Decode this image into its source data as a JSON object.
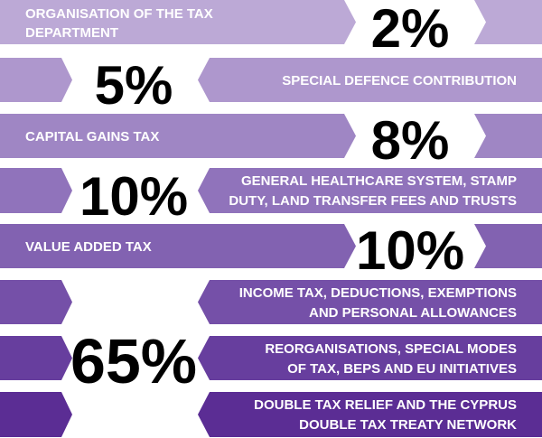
{
  "rows": [
    {
      "label_lines": [
        "ORGANISATION OF THE TAX",
        "DEPARTMENT"
      ],
      "percentage": "2%",
      "color": "#bca9d6",
      "percent_color": "#bca9d6"
    },
    {
      "label_lines": [
        "SPECIAL DEFENCE CONTRIBUTION"
      ],
      "percentage": "5%",
      "color": "#ae97cd",
      "percent_color": "#ae97cd"
    },
    {
      "label_lines": [
        "CAPITAL GAINS TAX"
      ],
      "percentage": "8%",
      "color": "#9f86c4",
      "percent_color": "#9f86c4"
    },
    {
      "label_lines": [
        "GENERAL HEALTHCARE SYSTEM, STAMP",
        "DUTY, LAND TRANSFER FEES AND TRUSTS"
      ],
      "percentage": "10%",
      "color": "#9073bb",
      "percent_color": "#9073bb"
    },
    {
      "label_lines": [
        "VALUE ADDED TAX"
      ],
      "percentage": "10%",
      "color": "#8262b1",
      "percent_color": "#8262b1"
    },
    {
      "label_lines": [
        "INCOME TAX, DEDUCTIONS, EXEMPTIONS",
        "AND PERSONAL ALLOWANCES"
      ],
      "color": "#7550a8"
    },
    {
      "label_lines": [
        "REORGANISATIONS, SPECIAL MODES",
        "OF TAX, BEPS AND EU INITIATIVES"
      ],
      "color": "#673e9e"
    },
    {
      "label_lines": [
        "DOUBLE TAX RELIEF AND THE CYPRUS",
        "DOUBLE TAX TREATY NETWORK"
      ],
      "color": "#5b2d94"
    }
  ],
  "group_percentage": "65%",
  "group_percent_color": "#6a3f9f"
}
